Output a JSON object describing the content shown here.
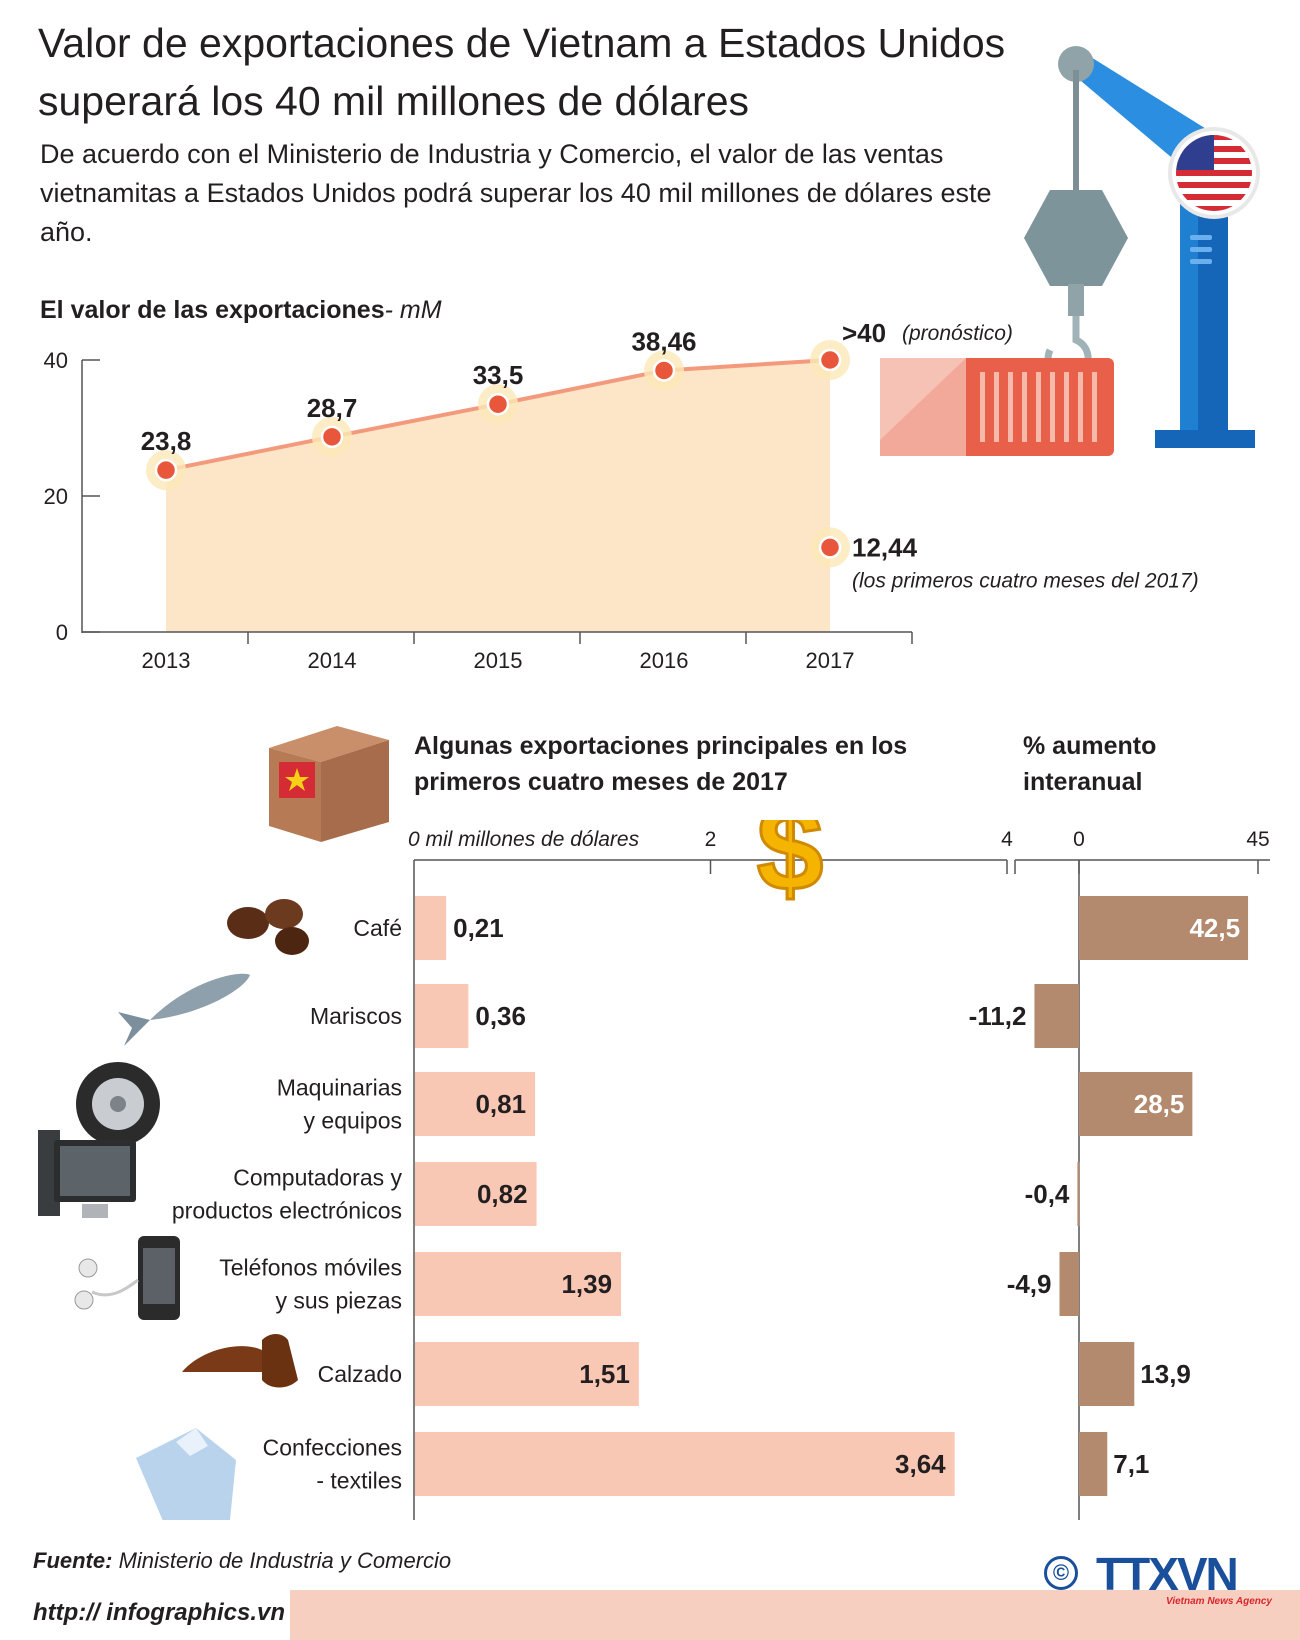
{
  "title": "Valor de exportaciones de Vietnam a Estados Unidos superará los 40 mil millones de dólares",
  "subtitle": "De acuerdo con el Ministerio de Industria y Comercio, el valor  de las ventas vietnamitas a Estados Unidos podrá superar los 40 mil millones de dólares este año.",
  "colors": {
    "line": "#f39a7d",
    "area": "#fde5c8",
    "point": "#e8573c",
    "bar": "#f9c8b4",
    "pct_bar": "#b38a6e",
    "accent_blue": "#1a4f9c"
  },
  "chart_data": [
    {
      "type": "line",
      "title": "El valor de las exportaciones",
      "unit": "- mM",
      "x": [
        "2013",
        "2014",
        "2015",
        "2016",
        "2017"
      ],
      "values": [
        23.8,
        28.7,
        33.5,
        38.46,
        40
      ],
      "value_labels": [
        "23,8",
        "28,7",
        "33,5",
        "38,46",
        ">40"
      ],
      "forecast_note": "(pronóstico)",
      "extra_point": {
        "x": "2017",
        "value": 12.44,
        "label": "12,44",
        "note": "(los primeros cuatro meses del 2017)"
      },
      "ylim": [
        0,
        40
      ],
      "yticks": [
        "0",
        "20",
        "40"
      ]
    },
    {
      "type": "bar",
      "orientation": "horizontal",
      "title": "Algunas exportaciones principales en los primeros cuatro meses de 2017",
      "axis_label": "0 mil millones de dólares",
      "ticks": [
        "2",
        "4"
      ],
      "xlim": [
        0,
        4
      ],
      "categories": [
        [
          "Café"
        ],
        [
          "Mariscos"
        ],
        [
          "Maquinarias",
          "y equipos"
        ],
        [
          "Computadoras y",
          "productos electrónicos"
        ],
        [
          "Teléfonos móviles",
          "y sus piezas"
        ],
        [
          "Calzado"
        ],
        [
          "Confecciones",
          "- textiles"
        ]
      ],
      "values": [
        0.21,
        0.36,
        0.81,
        0.82,
        1.39,
        1.51,
        3.64
      ],
      "value_labels": [
        "0,21",
        "0,36",
        "0,81",
        "0,82",
        "1,39",
        "1,51",
        "3,64"
      ]
    },
    {
      "type": "bar",
      "orientation": "horizontal",
      "title": "% aumento interanual",
      "ticks": [
        "0",
        "45"
      ],
      "xlim": [
        0,
        45
      ],
      "values": [
        42.5,
        -11.2,
        28.5,
        -0.4,
        -4.9,
        13.9,
        7.1
      ],
      "value_labels": [
        "42,5",
        "-11,2",
        "28,5",
        "-0,4",
        "-4,9",
        "13,9",
        "7,1"
      ]
    }
  ],
  "source_label": "Fuente:",
  "source_text": "Ministerio de Industria y Comercio",
  "footer_url": "http:// infographics.vn",
  "copyright_symbol": "©",
  "agency_logo": "TTXVN",
  "agency_name": "Vietnam News Agency"
}
